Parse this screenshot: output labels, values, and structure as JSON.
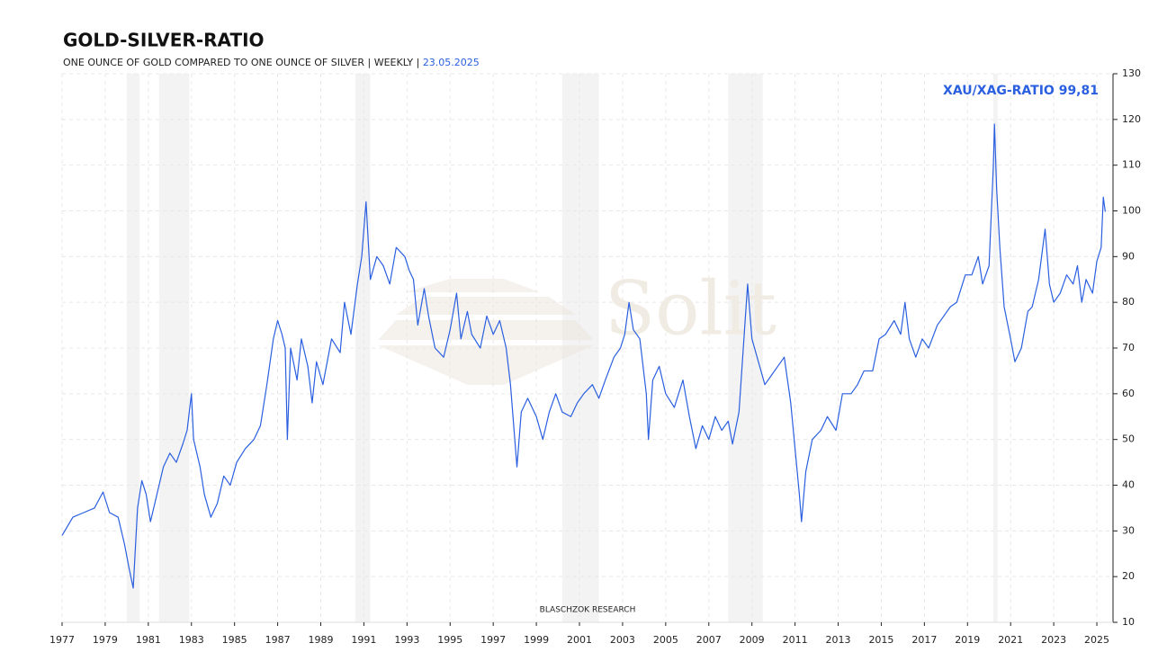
{
  "chart_data": {
    "type": "line",
    "title": "GOLD-SILVER-RATIO",
    "subtitle": "ONE OUNCE OF GOLD COMPARED TO ONE OUNCE OF SILVER | WEEKLY | ",
    "date": "23.05.2025",
    "annotation": "XAU/XAG-RATIO 99,81",
    "watermark": "Solit",
    "source": "BLASCHZOK   RESEARCH",
    "x": [
      1977.0,
      1977.5,
      1978.0,
      1978.5,
      1978.9,
      1979.2,
      1979.6,
      1979.9,
      1980.1,
      1980.3,
      1980.5,
      1980.7,
      1980.9,
      1981.1,
      1981.4,
      1981.7,
      1982.0,
      1982.3,
      1982.6,
      1982.8,
      1983.0,
      1983.1,
      1983.4,
      1983.6,
      1983.9,
      1984.2,
      1984.5,
      1984.8,
      1985.1,
      1985.5,
      1985.9,
      1986.2,
      1986.5,
      1986.8,
      1987.0,
      1987.2,
      1987.35,
      1987.45,
      1987.6,
      1987.9,
      1988.1,
      1988.4,
      1988.6,
      1988.8,
      1989.1,
      1989.5,
      1989.9,
      1990.1,
      1990.4,
      1990.7,
      1990.9,
      1991.1,
      1991.3,
      1991.6,
      1991.9,
      1992.2,
      1992.5,
      1992.9,
      1993.1,
      1993.3,
      1993.5,
      1993.8,
      1994.0,
      1994.3,
      1994.7,
      1995.0,
      1995.3,
      1995.5,
      1995.8,
      1996.0,
      1996.4,
      1996.7,
      1997.0,
      1997.3,
      1997.6,
      1997.8,
      1998.0,
      1998.1,
      1998.3,
      1998.6,
      1999.0,
      1999.3,
      1999.6,
      1999.9,
      2000.2,
      2000.6,
      2000.9,
      2001.2,
      2001.6,
      2001.9,
      2002.2,
      2002.6,
      2002.9,
      2003.1,
      2003.3,
      2003.5,
      2003.8,
      2004.1,
      2004.2,
      2004.4,
      2004.7,
      2005.0,
      2005.4,
      2005.8,
      2006.1,
      2006.4,
      2006.7,
      2007.0,
      2007.3,
      2007.6,
      2007.9,
      2008.1,
      2008.4,
      2008.6,
      2008.8,
      2009.0,
      2009.3,
      2009.6,
      2009.9,
      2010.2,
      2010.5,
      2010.8,
      2011.0,
      2011.2,
      2011.3,
      2011.5,
      2011.8,
      2012.2,
      2012.5,
      2012.9,
      2013.2,
      2013.6,
      2013.9,
      2014.2,
      2014.6,
      2014.9,
      2015.2,
      2015.6,
      2015.9,
      2016.1,
      2016.3,
      2016.6,
      2016.9,
      2017.2,
      2017.6,
      2017.9,
      2018.2,
      2018.5,
      2018.9,
      2019.2,
      2019.5,
      2019.7,
      2020.0,
      2020.2,
      2020.25,
      2020.35,
      2020.5,
      2020.7,
      2021.0,
      2021.2,
      2021.5,
      2021.8,
      2022.0,
      2022.3,
      2022.6,
      2022.8,
      2023.0,
      2023.3,
      2023.6,
      2023.9,
      2024.1,
      2024.3,
      2024.5,
      2024.8,
      2025.0,
      2025.2,
      2025.3,
      2025.39
    ],
    "series": [
      {
        "name": "XAU/XAG-RATIO",
        "color": "#2a5fe0",
        "values": [
          29,
          33,
          34,
          35,
          38.5,
          34,
          33,
          27,
          22,
          17.5,
          35,
          41,
          38,
          32,
          38,
          44,
          47,
          45,
          49,
          52,
          60,
          50,
          44,
          38,
          33,
          36,
          42,
          40,
          45,
          48,
          50,
          53,
          62,
          72,
          76,
          73,
          70,
          50,
          70,
          63,
          72,
          66,
          58,
          67,
          62,
          72,
          69,
          80,
          73,
          84,
          90,
          102,
          85,
          90,
          88,
          84,
          92,
          90,
          87,
          85,
          75,
          83,
          77,
          70,
          68,
          74,
          82,
          72,
          78,
          73,
          70,
          77,
          73,
          76,
          70,
          62,
          50,
          44,
          56,
          59,
          55,
          50,
          56,
          60,
          56,
          55,
          58,
          60,
          62,
          59,
          63,
          68,
          70,
          73,
          80,
          74,
          72,
          60,
          50,
          63,
          66,
          60,
          57,
          63,
          55,
          48,
          53,
          50,
          55,
          52,
          54,
          49,
          56,
          70,
          84,
          72,
          67,
          62,
          64,
          66,
          68,
          58,
          48,
          38,
          32,
          43,
          50,
          52,
          55,
          52,
          60,
          60,
          62,
          65,
          65,
          72,
          73,
          76,
          73,
          80,
          72,
          68,
          72,
          70,
          75,
          77,
          79,
          80,
          86,
          86,
          90,
          84,
          88,
          110,
          119,
          105,
          92,
          79,
          72,
          67,
          70,
          78,
          79,
          85,
          96,
          84,
          80,
          82,
          86,
          84,
          88,
          80,
          85,
          82,
          89,
          92,
          103,
          99.81
        ]
      }
    ],
    "shaded_periods": [
      [
        1980.0,
        1980.6
      ],
      [
        1981.5,
        1982.9
      ],
      [
        1990.6,
        1991.3
      ],
      [
        2000.2,
        2001.9
      ],
      [
        2007.9,
        2009.5
      ],
      [
        2020.2,
        2020.4
      ]
    ],
    "xlim": [
      1977,
      2025.75
    ],
    "xticks": [
      1977,
      1979,
      1981,
      1983,
      1985,
      1987,
      1989,
      1991,
      1993,
      1995,
      1997,
      1999,
      2001,
      2003,
      2005,
      2007,
      2009,
      2011,
      2013,
      2015,
      2017,
      2019,
      2021,
      2023,
      2025
    ],
    "ylim": [
      10,
      130
    ],
    "yticks": [
      10,
      20,
      30,
      40,
      50,
      60,
      70,
      80,
      90,
      100,
      110,
      120,
      130
    ],
    "grid": true
  }
}
